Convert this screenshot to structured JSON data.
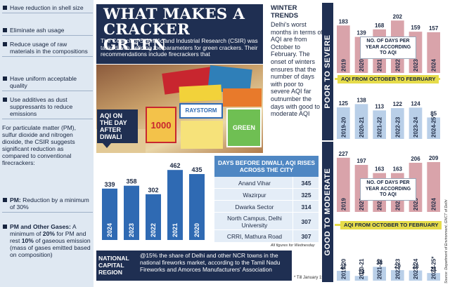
{
  "left": {
    "points": [
      {
        "text": "Have reduction in shell size"
      },
      {
        "text": "Eliminate ash usage"
      },
      {
        "text": "Reduce usage of raw materials in the compositions"
      },
      {
        "text": "Have uniform acceptable quality"
      },
      {
        "text": "Use additives as dust suppressants to reduce emissions"
      }
    ],
    "para": "For particulate matter (PM), sulfur dioxide and nitrogen dioxide, the CSIR suggests significant reduction as compared to conventional firecrackers:",
    "pm_label": "PM:",
    "pm_text": " Reduction by a minimum of 30%",
    "gases_label": "PM and Other Gases:",
    "gases_text_1": " A minimum of ",
    "gases_pct_1": "20%",
    "gases_text_2": " for PM and rest ",
    "gases_pct_2": "10%",
    "gases_text_3": " of gaseous emission (mass of gases emitted based on composition)"
  },
  "header": {
    "title_line1": "WHAT MAKES A",
    "title_line2": "CRACKER GREEN",
    "intro": "The Council of Scientific and Industrial Research (CSIR) was tasked with defining the parameters for green crackers. Their recommendations include firecrackers that"
  },
  "aqi_badge": "AQI ON THE DAY AFTER DIWALI",
  "chart_data": [
    {
      "type": "bar",
      "title": "AQI ON THE DAY AFTER DIWALI",
      "categories": [
        "2024",
        "2023",
        "2022",
        "2021",
        "2020"
      ],
      "values": [
        339,
        358,
        302,
        462,
        435
      ],
      "ylim": [
        0,
        500
      ]
    },
    {
      "type": "bar",
      "title": "POOR TO SEVERE",
      "subcharts": [
        {
          "label": "NO. OF DAYS PER YEAR ACCORDING TO AQI",
          "categories": [
            "2019",
            "2020",
            "2021",
            "2022",
            "2023",
            "2024"
          ],
          "values": [
            183,
            139,
            168,
            202,
            159,
            157
          ]
        },
        {
          "label": "AQI FROM OCTOBER TO FEBRUARY",
          "categories": [
            "2019-20",
            "2020-21",
            "2021-22",
            "2022-23",
            "2023-24",
            "2024-25*"
          ],
          "values": [
            125,
            138,
            113,
            122,
            124,
            85
          ]
        }
      ]
    },
    {
      "type": "bar",
      "title": "GOOD TO MODERATE",
      "subcharts": [
        {
          "label": "NO. OF DAYS PER YEAR ACCORDING TO AQI",
          "categories": [
            "2019",
            "2020",
            "2021",
            "2022",
            "2023",
            "2024"
          ],
          "values": [
            227,
            197,
            163,
            163,
            206,
            209
          ]
        },
        {
          "label": "AQI FROM OCTOBER TO FEBRUARY",
          "categories": [
            "2019-20",
            "2020-21",
            "2021-22",
            "2022-23",
            "2023-24",
            "2024-25*"
          ],
          "values": [
            27,
            13,
            38,
            29,
            28,
            21
          ]
        }
      ]
    }
  ],
  "diwali_table": {
    "title": "DAYS BEFORE DIWALI, AQI RISES ACROSS THE CITY",
    "rows": [
      {
        "place": "Anand Vihar",
        "aqi": "345"
      },
      {
        "place": "Wazirpur",
        "aqi": "325"
      },
      {
        "place": "Dwarka Sector",
        "aqi": "314"
      },
      {
        "place": "North Campus, Delhi University",
        "aqi": "307"
      },
      {
        "place": "CRRI, Mathura Road",
        "aqi": "307"
      }
    ],
    "note": "All figures for Wednesday"
  },
  "ncr": {
    "label": "NATIONAL CAPITAL REGION",
    "text": "@15% the share of Delhi and other NCR towns in the national fireworks market, according to the Tamil Nadu Fireworks and Amorces Manufacturers' Association"
  },
  "footnote": "* Till January 15",
  "winter": {
    "title_line1": "WINTER",
    "title_line2": "TRENDS",
    "text": "Delhi's worst months in terms of AQI are from October to February. The onset of winters ensures that the number of days with poor to severe AQI far outnumber the days with good to moderate AQI"
  },
  "right": {
    "band_top": "POOR TO SEVERE",
    "band_bottom": "GOOD TO MODERATE",
    "days_label": "NO. OF DAYS PER YEAR ACCORDING TO AQI",
    "oct_feb_label": "AQI FROM OCTOBER TO FEBRUARY"
  },
  "source": "Source: Department of Environment, GNCT of Delhi",
  "photo_words": {
    "w1": "1000",
    "w2": "RAYSTORM",
    "w3": "GREEN"
  },
  "colors": {
    "navy": "#1f2f52",
    "blue_bar": "#2f6ab3",
    "pink_bar": "#d9a3aa",
    "pale_blue_bar": "#b9cfe8",
    "yellow": "#e6dc4a",
    "left_bg": "#dfe8f2"
  }
}
